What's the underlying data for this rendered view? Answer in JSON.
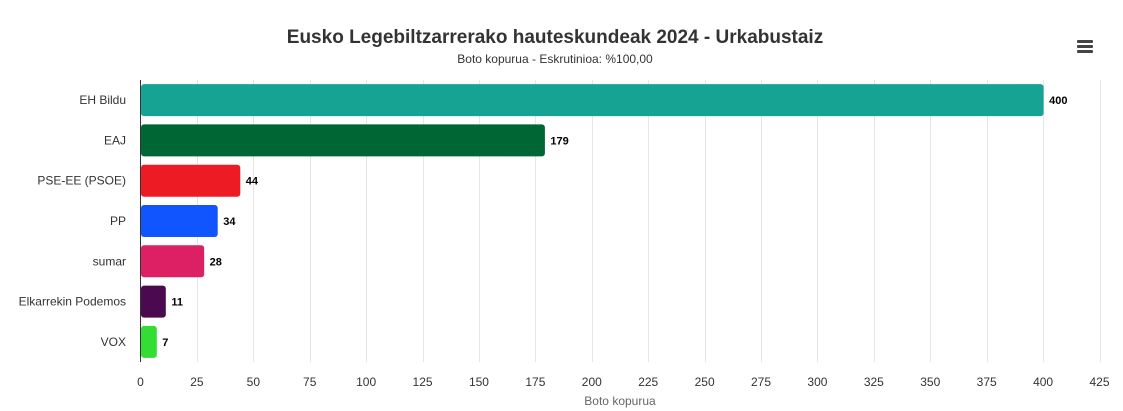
{
  "chart_data": {
    "type": "bar",
    "orientation": "horizontal",
    "title": "Eusko Legebiltzarrerako hauteskundeak 2024 - Urkabustaiz",
    "subtitle": "Boto kopurua - Eskrutinioa: %100,00",
    "xlabel": "Boto kopurua",
    "ylabel": "",
    "xlim": [
      0,
      425
    ],
    "x_ticks": [
      "0",
      "25",
      "50",
      "75",
      "100",
      "125",
      "150",
      "175",
      "200",
      "225",
      "250",
      "275",
      "300",
      "325",
      "350",
      "375",
      "400",
      "425"
    ],
    "grid": true,
    "categories": [
      "EH Bildu",
      "EAJ",
      "PSE-EE (PSOE)",
      "PP",
      "sumar",
      "Elkarrekin Podemos",
      "VOX"
    ],
    "values": [
      400,
      179,
      44,
      34,
      28,
      11,
      7
    ],
    "colors": [
      "#16a394",
      "#006633",
      "#ed1c24",
      "#1155ff",
      "#dd1f63",
      "#4b0a4f",
      "#33dd33"
    ],
    "data_labels": [
      "400",
      "179",
      "44",
      "34",
      "28",
      "11",
      "7"
    ]
  },
  "toolbar": {
    "menu_icon": "hamburger-menu-icon"
  }
}
